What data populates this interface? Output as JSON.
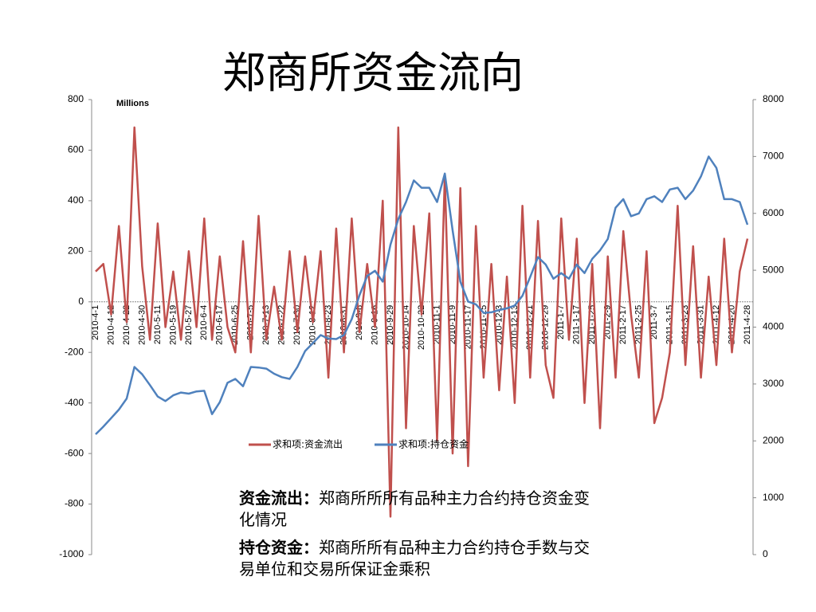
{
  "chart_data": {
    "type": "line",
    "title": "郑商所资金流向",
    "annotation": "Millions",
    "categories": [
      "2010-4-1",
      null,
      "2010-4-12",
      null,
      "2010-4-22",
      null,
      "2010-4-30",
      null,
      "2010-5-11",
      null,
      "2010-5-19",
      null,
      "2010-5-27",
      null,
      "2010-6-4",
      null,
      "2010-6-17",
      null,
      "2010-6-25",
      null,
      "2010-7-5",
      null,
      "2010-7-13",
      null,
      "2010-7-22",
      null,
      "2010-7-30",
      null,
      "2010-8-12",
      null,
      "2010-8-23",
      null,
      "2010-8-31",
      null,
      "2010-9-8",
      null,
      "2010-9-16",
      null,
      "2010-9-29",
      null,
      "2010-10-14",
      null,
      "2010-10-22",
      null,
      "2010-11-1",
      null,
      "2010-11-9",
      null,
      "2010-11-17",
      null,
      "2010-11-25",
      null,
      "2010-12-3",
      null,
      "2010-12-13",
      null,
      "2010-12-21",
      null,
      "2010-12-29",
      null,
      "2011-1-7",
      null,
      "2011-1-17",
      null,
      "2011-1-25",
      null,
      "2011-2-9",
      null,
      "2011-2-17",
      null,
      "2011-2-25",
      null,
      "2011-3-7",
      null,
      "2011-3-15",
      null,
      "2011-3-23",
      null,
      "2011-3-31",
      null,
      "2011-4-12",
      null,
      "2011-4-20",
      null,
      "2011-4-28"
    ],
    "series": [
      {
        "name": "求和项:资金流出",
        "color": "#c0504d",
        "values": [
          120,
          150,
          -50,
          300,
          -80,
          690,
          140,
          -150,
          310,
          -100,
          120,
          -150,
          200,
          -100,
          330,
          -150,
          180,
          -100,
          -200,
          240,
          -200,
          340,
          -150,
          60,
          -150,
          200,
          -120,
          180,
          -80,
          200,
          -300,
          290,
          -200,
          330,
          -120,
          150,
          -100,
          400,
          -850,
          690,
          -500,
          300,
          -50,
          350,
          -550,
          500,
          -600,
          450,
          -650,
          300,
          -300,
          150,
          -350,
          100,
          -400,
          380,
          -300,
          320,
          -250,
          -380,
          330,
          -150,
          250,
          -400,
          150,
          -500,
          180,
          -300,
          280,
          -50,
          -300,
          200,
          -480,
          -380,
          -200,
          380,
          -250,
          220,
          -300,
          100,
          -250,
          250,
          -200,
          120,
          250
        ]
      },
      {
        "name": "求和项:持仓资金",
        "color": "#4f81bd",
        "axis": "y2",
        "values": [
          2115,
          2250,
          2400,
          2550,
          2745,
          3300,
          3170,
          2980,
          2780,
          2700,
          2800,
          2850,
          2830,
          2870,
          2880,
          2470,
          2680,
          3020,
          3090,
          2960,
          3300,
          3290,
          3270,
          3180,
          3120,
          3090,
          3300,
          3580,
          3720,
          3860,
          3800,
          3790,
          3860,
          4140,
          4560,
          4900,
          4990,
          4800,
          5450,
          5900,
          6200,
          6580,
          6450,
          6450,
          6200,
          6700,
          5700,
          4800,
          4450,
          4400,
          4250,
          4260,
          4300,
          4330,
          4380,
          4550,
          4880,
          5230,
          5100,
          4850,
          4950,
          4850,
          5100,
          4950,
          5200,
          5350,
          5550,
          6100,
          6250,
          5950,
          6000,
          6250,
          6300,
          6200,
          6420,
          6450,
          6250,
          6400,
          6650,
          7000,
          6800,
          6250,
          6250,
          6200,
          5800
        ]
      }
    ],
    "ylim": [
      -1000,
      800
    ],
    "yticks": [
      -1000,
      -800,
      -600,
      -400,
      -200,
      0,
      200,
      400,
      600,
      800
    ],
    "y2lim": [
      0,
      8000
    ],
    "y2ticks": [
      0,
      1000,
      2000,
      3000,
      4000,
      5000,
      6000,
      7000,
      8000
    ],
    "legend": "bottom"
  },
  "notes": [
    {
      "term": "资金流出：",
      "text": "郑商所所所有品种主力合约持仓资金变化情况"
    },
    {
      "term": "持仓资金：",
      "text": "郑商所所有品种主力合约持仓手数与交易单位和交易所保证金乘积"
    }
  ]
}
